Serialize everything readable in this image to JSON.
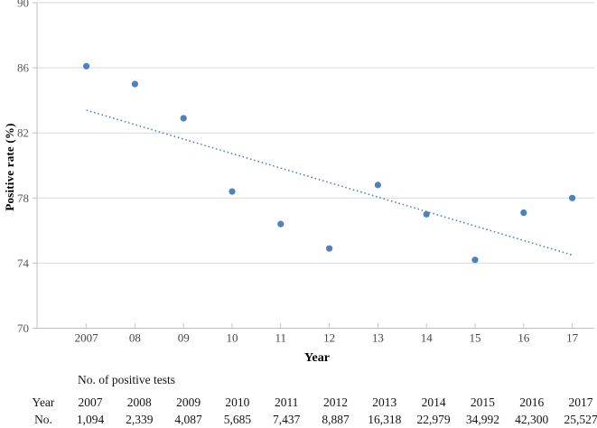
{
  "chart_data": {
    "type": "scatter",
    "title": "",
    "xlabel": "Year",
    "ylabel": "Positive rate (%)",
    "x": [
      2007,
      2008,
      2009,
      2010,
      2011,
      2012,
      2013,
      2014,
      2015,
      2016,
      2017
    ],
    "x_tick_labels": [
      "2007",
      "08",
      "09",
      "10",
      "11",
      "12",
      "13",
      "14",
      "15",
      "16",
      "17"
    ],
    "series": [
      {
        "name": "Positive rate",
        "values": [
          86.1,
          85.0,
          82.9,
          78.4,
          76.4,
          74.9,
          78.8,
          77.0,
          74.2,
          77.1,
          78.0
        ]
      }
    ],
    "trendline": {
      "x_start": 2007,
      "y_start": 83.4,
      "x_end": 2017,
      "y_end": 74.5,
      "style": "dotted"
    },
    "ylim": [
      70,
      90
    ],
    "yticks": [
      70,
      74,
      78,
      82,
      86,
      90
    ],
    "grid": "horizontal",
    "legend": "none",
    "colors": {
      "point": "#4f81bd",
      "trend": "#4f81bd",
      "gridline": "#d9d9d9",
      "axis": "#bfbfbf",
      "tick": "#c6c6c6"
    }
  },
  "table": {
    "header": "No. of positive tests",
    "row_labels": [
      "Year",
      "No."
    ],
    "years": [
      "2007",
      "2008",
      "2009",
      "2010",
      "2011",
      "2012",
      "2013",
      "2014",
      "2015",
      "2016",
      "2017"
    ],
    "values": [
      "1,094",
      "2,339",
      "4,087",
      "5,685",
      "7,437",
      "8,887",
      "16,318",
      "22,979",
      "34,992",
      "42,300",
      "25,527"
    ]
  }
}
